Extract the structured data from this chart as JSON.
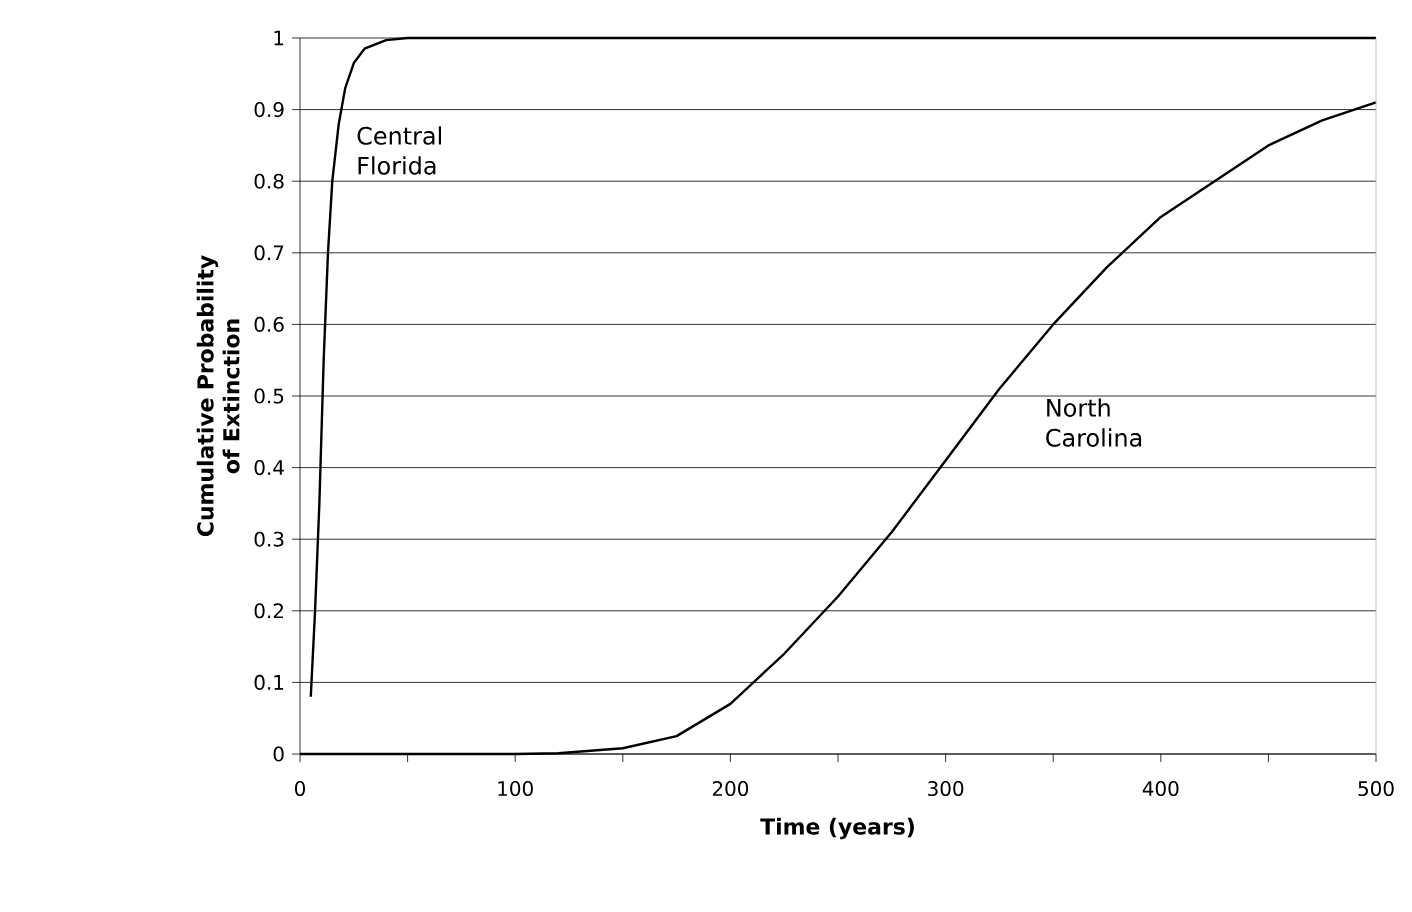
{
  "chart_data": {
    "type": "line",
    "xlabel": "Time (years)",
    "ylabel": "Cumulative Probability of Extinction",
    "xlim": [
      0,
      500
    ],
    "ylim": [
      0,
      1
    ],
    "xticks": [
      0,
      {
        "value": 50,
        "label": null
      },
      100,
      {
        "value": 150,
        "label": null
      },
      200,
      {
        "value": 250,
        "label": null
      },
      300,
      {
        "value": 350,
        "label": null
      },
      400,
      {
        "value": 450,
        "label": null
      },
      500
    ],
    "yticks": [
      0,
      0.1,
      0.2,
      0.3,
      0.4,
      0.5,
      0.6,
      0.7,
      0.8,
      0.9,
      1
    ],
    "grid": "y",
    "legend": false,
    "marker": "none",
    "line_style": "solid",
    "series": [
      {
        "name": "Central Florida",
        "color": "#000000",
        "x": [
          5,
          7,
          9,
          11,
          13,
          15,
          18,
          21,
          25,
          30,
          40,
          50,
          100,
          200,
          300,
          400,
          500
        ],
        "values": [
          0.08,
          0.2,
          0.35,
          0.55,
          0.7,
          0.8,
          0.88,
          0.93,
          0.965,
          0.985,
          0.997,
          1,
          1,
          1,
          1,
          1,
          1
        ]
      },
      {
        "name": "North Carolina",
        "color": "#000000",
        "x": [
          0,
          50,
          100,
          120,
          150,
          175,
          200,
          225,
          250,
          275,
          300,
          325,
          350,
          375,
          400,
          425,
          450,
          475,
          500
        ],
        "values": [
          0,
          0,
          0,
          0.001,
          0.008,
          0.025,
          0.07,
          0.14,
          0.22,
          0.31,
          0.41,
          0.51,
          0.6,
          0.68,
          0.75,
          0.8,
          0.85,
          0.885,
          0.91
        ]
      }
    ]
  }
}
